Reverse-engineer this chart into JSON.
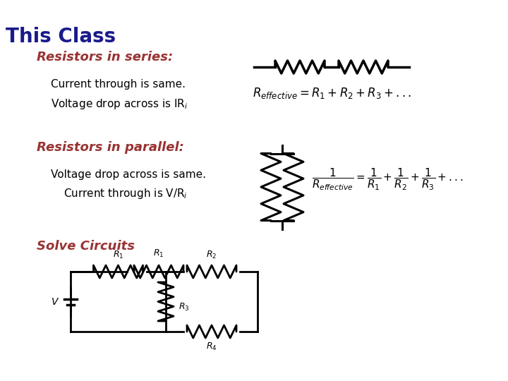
{
  "title": "This Class",
  "title_color": "#1a1a8c",
  "title_fontsize": 20,
  "bg_color": "#FFFFFF",
  "red_color": "#993333",
  "text_color": "#000000",
  "section1_heading": "Resistors in series:",
  "section1_line1": "Current through is same.",
  "section1_line2": "Voltage drop across is IR",
  "section2_heading": "Resistors in parallel:",
  "section2_line1": "Voltage drop across is same.",
  "section2_line2": "  Current through is V/R",
  "section3_heading": "Solve Circuits",
  "heading_fontsize": 13,
  "body_fontsize": 11
}
